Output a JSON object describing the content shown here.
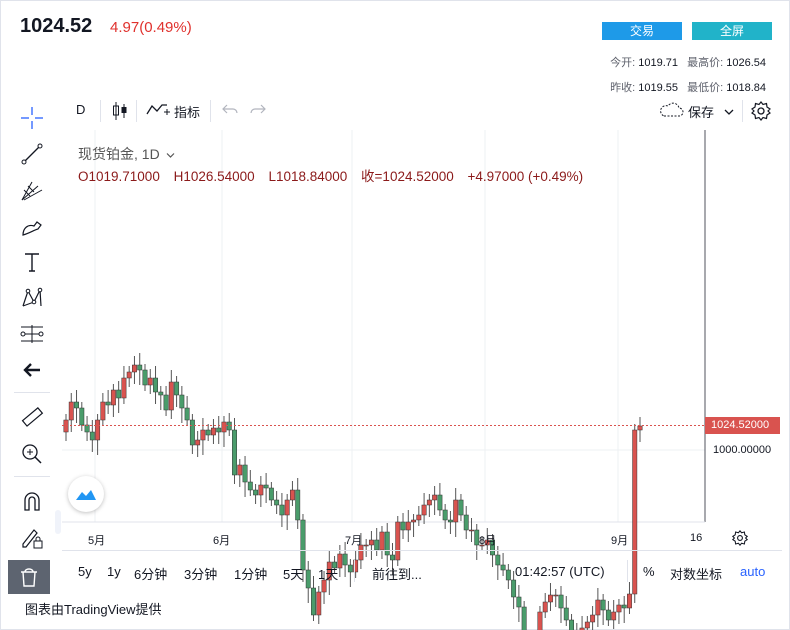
{
  "header": {
    "price": "1024.52",
    "change": "4.97(0.49%)",
    "trade_label": "交易",
    "fullscreen_label": "全屏",
    "open_label": "今开:",
    "open_value": "1019.71",
    "high_label": "最高价:",
    "high_value": "1026.54",
    "prev_close_label": "昨收:",
    "prev_close_value": "1019.55",
    "low_label": "最低价:",
    "low_value": "1018.84"
  },
  "toolbar": {
    "interval": "D",
    "indicators_label": "指标",
    "save_label": "保存"
  },
  "legend": {
    "symbol": "现货铂金, 1D",
    "open": "O1019.71000",
    "high": "H1026.54000",
    "low": "L1018.84000",
    "close": "收=1024.52000",
    "change": "+4.97000 (+0.49%)"
  },
  "price_axis": {
    "last_price_label": "1024.52000",
    "tick_label": "1000.00000"
  },
  "time_axis": [
    "5月",
    "6月",
    "7月",
    "8月",
    "9月",
    "16"
  ],
  "bottom_bar": {
    "ranges": [
      "5y",
      "1y",
      "6分钟",
      "3分钟",
      "1分钟",
      "5天",
      "1天"
    ],
    "goto_label": "前往到...",
    "clock": "01:42:57 (UTC)",
    "percent_label": "%",
    "log_label": "对数坐标",
    "auto_label": "auto"
  },
  "credit": "图表由TradingView提供",
  "colors": {
    "up": "#d9534f",
    "down": "#4a9c6b",
    "accent": "#2962ff"
  },
  "chart_data": {
    "type": "candlestick",
    "last_price": 1024.52,
    "reference_level": 1000.0,
    "closes": [
      1030,
      1048,
      1042,
      1025,
      1018,
      1010,
      1030,
      1048,
      1045,
      1060,
      1052,
      1072,
      1078,
      1085,
      1080,
      1065,
      1072,
      1058,
      1055,
      1040,
      1068,
      1055,
      1042,
      1030,
      1005,
      1010,
      1020,
      1015,
      1022,
      1018,
      1028,
      1020,
      975,
      985,
      968,
      960,
      955,
      965,
      962,
      950,
      945,
      935,
      950,
      960,
      930,
      880,
      862,
      835,
      858,
      870,
      888,
      882,
      896,
      885,
      878,
      890,
      905,
      905,
      910,
      900,
      918,
      895,
      890,
      928,
      920,
      928,
      930,
      935,
      945,
      950,
      955,
      940,
      930,
      928,
      950,
      935,
      920,
      920,
      905,
      905,
      910,
      895,
      885,
      880,
      870,
      853,
      843,
      808,
      802,
      808,
      838,
      848,
      855,
      855,
      842,
      830,
      818,
      815,
      822,
      828,
      835,
      850,
      840,
      830,
      838,
      845,
      842,
      856,
      1020,
      1024
    ]
  }
}
